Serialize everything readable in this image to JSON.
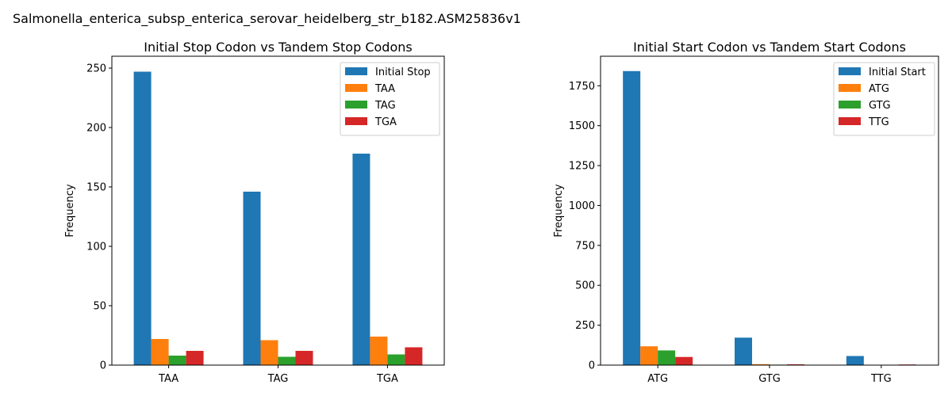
{
  "figure_title": "Salmonella_enterica_subsp_enterica_serovar_heidelberg_str_b182.ASM25836v1",
  "colors": {
    "blue": "#1f77b4",
    "orange": "#ff7f0e",
    "green": "#2ca02c",
    "red": "#d62728"
  },
  "chart_data": [
    {
      "type": "bar",
      "title": "Initial Stop Codon vs Tandem Stop Codons",
      "xlabel": "",
      "ylabel": "Frequency",
      "ylim": [
        0,
        260
      ],
      "yticks": [
        0,
        50,
        100,
        150,
        200,
        250
      ],
      "legend_position": "top-right",
      "categories": [
        "TAA",
        "TAG",
        "TGA"
      ],
      "series": [
        {
          "name": "Initial Stop",
          "color": "#1f77b4",
          "values": [
            247,
            146,
            178
          ]
        },
        {
          "name": "TAA",
          "color": "#ff7f0e",
          "values": [
            22,
            21,
            24
          ]
        },
        {
          "name": "TAG",
          "color": "#2ca02c",
          "values": [
            8,
            7,
            9
          ]
        },
        {
          "name": "TGA",
          "color": "#d62728",
          "values": [
            12,
            12,
            15
          ]
        }
      ]
    },
    {
      "type": "bar",
      "title": "Initial Start Codon vs Tandem Start Codons",
      "xlabel": "",
      "ylabel": "Frequency",
      "ylim": [
        0,
        1935
      ],
      "yticks": [
        0,
        250,
        500,
        750,
        1000,
        1250,
        1500,
        1750
      ],
      "legend_position": "top-right",
      "categories": [
        "ATG",
        "GTG",
        "TTG"
      ],
      "series": [
        {
          "name": "Initial Start",
          "color": "#1f77b4",
          "values": [
            1842,
            172,
            57
          ]
        },
        {
          "name": "ATG",
          "color": "#ff7f0e",
          "values": [
            118,
            6,
            0
          ]
        },
        {
          "name": "GTG",
          "color": "#2ca02c",
          "values": [
            92,
            3,
            1
          ]
        },
        {
          "name": "TTG",
          "color": "#d62728",
          "values": [
            51,
            5,
            4
          ]
        }
      ]
    }
  ]
}
